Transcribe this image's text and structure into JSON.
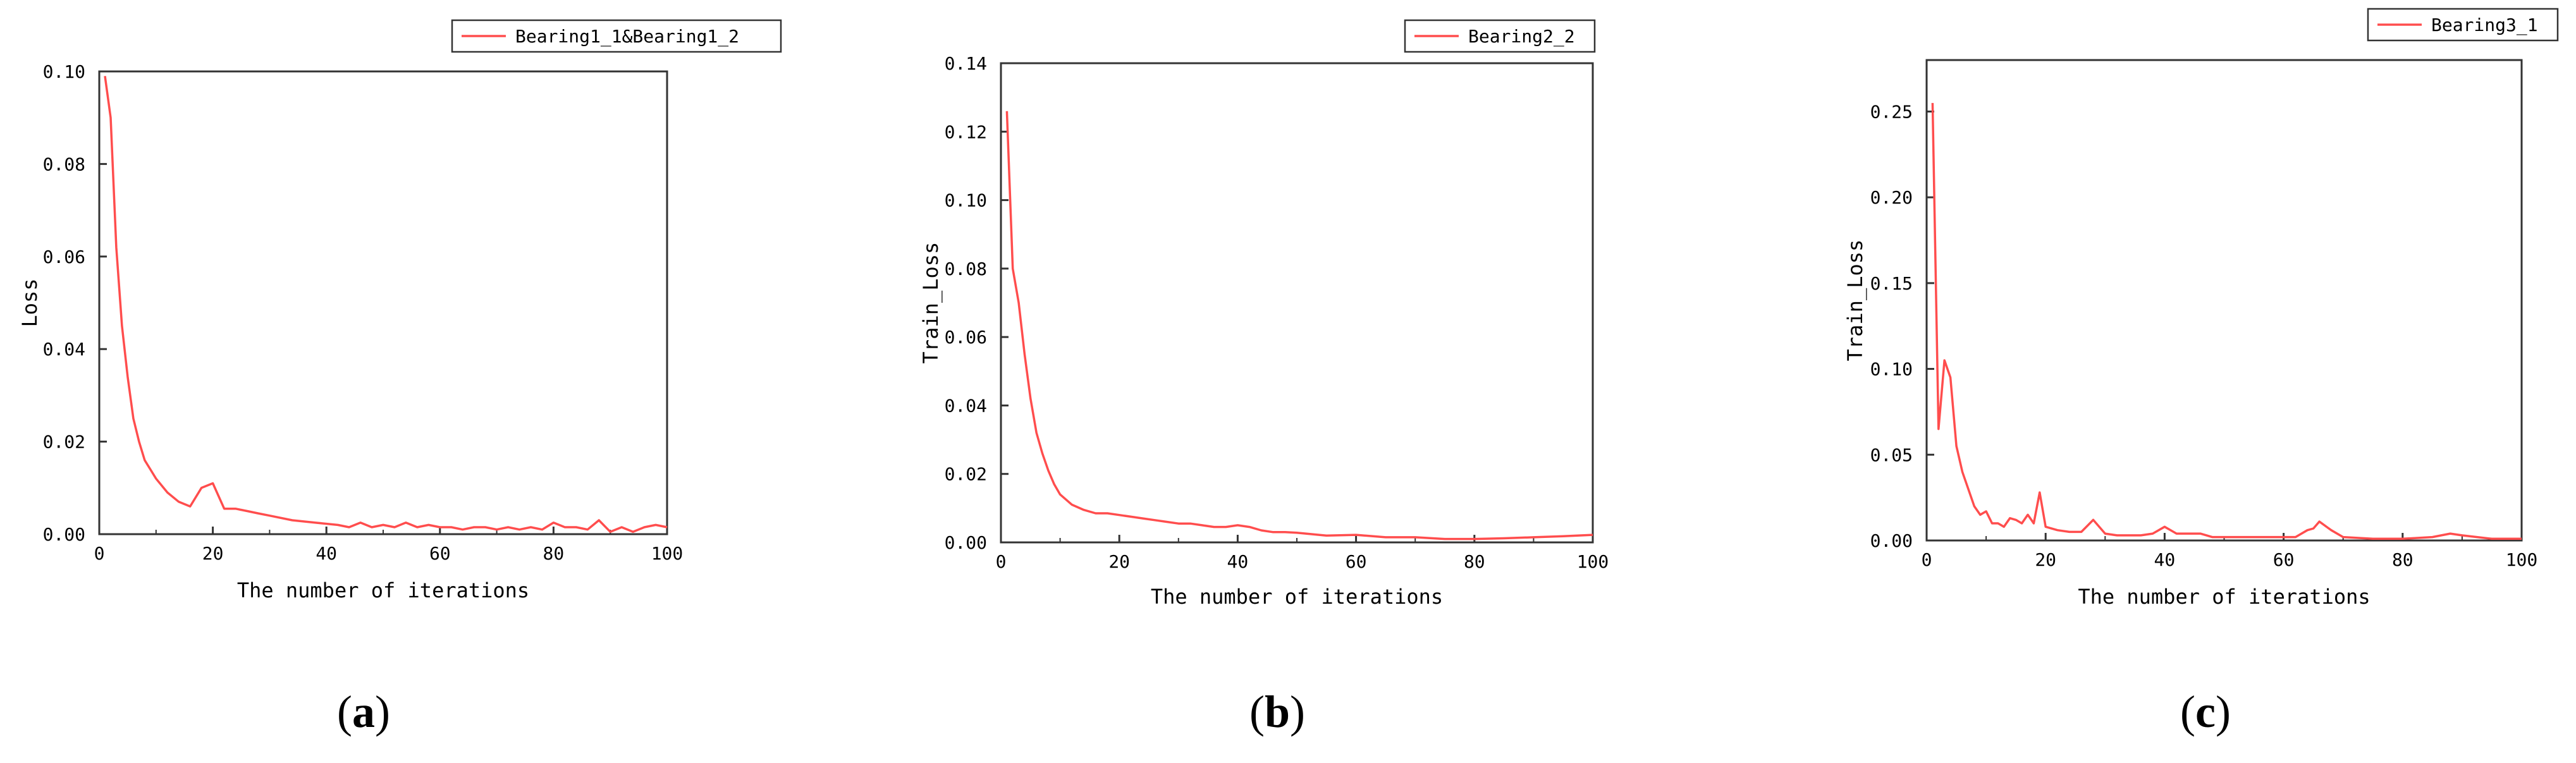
{
  "chart_data": [
    {
      "type": "line",
      "panel": "(a)",
      "panel_letter": "a",
      "xlabel": "The number of iterations",
      "ylabel": "Loss",
      "xlim": [
        0,
        100
      ],
      "ylim": [
        0,
        0.1
      ],
      "xticks": [
        "0",
        "20",
        "40",
        "60",
        "80",
        "100"
      ],
      "yticks": [
        "0.00",
        "0.02",
        "0.04",
        "0.06",
        "0.08",
        "0.10"
      ],
      "legend_position": "top-right",
      "grid": false,
      "series": [
        {
          "name": "Bearing1_1&Bearing1_2",
          "color": "#ff4d4d",
          "x": [
            1,
            2,
            3,
            4,
            5,
            6,
            7,
            8,
            9,
            10,
            12,
            14,
            16,
            18,
            20,
            22,
            24,
            26,
            28,
            30,
            34,
            38,
            42,
            44,
            46,
            48,
            50,
            52,
            54,
            56,
            58,
            60,
            62,
            64,
            66,
            68,
            70,
            72,
            74,
            76,
            78,
            80,
            82,
            84,
            86,
            88,
            90,
            92,
            94,
            96,
            98,
            100
          ],
          "y": [
            0.099,
            0.09,
            0.062,
            0.045,
            0.034,
            0.025,
            0.02,
            0.016,
            0.014,
            0.012,
            0.009,
            0.007,
            0.006,
            0.01,
            0.011,
            0.0055,
            0.0055,
            0.005,
            0.0045,
            0.004,
            0.003,
            0.0025,
            0.002,
            0.0015,
            0.0025,
            0.0015,
            0.002,
            0.0015,
            0.0025,
            0.0015,
            0.002,
            0.0015,
            0.0015,
            0.001,
            0.0015,
            0.0015,
            0.001,
            0.0015,
            0.001,
            0.0015,
            0.001,
            0.0025,
            0.0015,
            0.0015,
            0.001,
            0.003,
            0.0005,
            0.0015,
            0.0005,
            0.0015,
            0.002,
            0.0015
          ]
        }
      ]
    },
    {
      "type": "line",
      "panel": "(b)",
      "panel_letter": "b",
      "xlabel": "The number of iterations",
      "ylabel": "Train_Loss",
      "xlim": [
        0,
        100
      ],
      "ylim": [
        0,
        0.14
      ],
      "xticks": [
        "0",
        "20",
        "40",
        "60",
        "80",
        "100"
      ],
      "yticks": [
        "0.00",
        "0.02",
        "0.04",
        "0.06",
        "0.08",
        "0.10",
        "0.12",
        "0.14"
      ],
      "legend_position": "top-right",
      "grid": false,
      "series": [
        {
          "name": "Bearing2_2",
          "color": "#ff4d4d",
          "x": [
            1,
            2,
            3,
            4,
            5,
            6,
            7,
            8,
            9,
            10,
            12,
            14,
            16,
            18,
            20,
            22,
            24,
            26,
            28,
            30,
            32,
            34,
            36,
            38,
            40,
            42,
            44,
            46,
            48,
            50,
            55,
            60,
            65,
            70,
            75,
            80,
            85,
            90,
            95,
            100
          ],
          "y": [
            0.126,
            0.08,
            0.07,
            0.055,
            0.042,
            0.032,
            0.026,
            0.021,
            0.017,
            0.014,
            0.011,
            0.0095,
            0.0085,
            0.0085,
            0.008,
            0.0075,
            0.007,
            0.0065,
            0.006,
            0.0055,
            0.0055,
            0.005,
            0.0045,
            0.0045,
            0.005,
            0.0045,
            0.0035,
            0.003,
            0.003,
            0.0028,
            0.002,
            0.0022,
            0.0015,
            0.0015,
            0.001,
            0.001,
            0.0012,
            0.0015,
            0.0018,
            0.0022
          ]
        }
      ]
    },
    {
      "type": "line",
      "panel": "(c)",
      "panel_letter": "c",
      "xlabel": "The number of iterations",
      "ylabel": "Train_Loss",
      "xlim": [
        0,
        100
      ],
      "ylim": [
        0,
        0.28
      ],
      "xticks": [
        "0",
        "20",
        "40",
        "60",
        "80",
        "100"
      ],
      "yticks": [
        "0.00",
        "0.05",
        "0.10",
        "0.15",
        "0.20",
        "0.25"
      ],
      "legend_position": "top-right",
      "grid": false,
      "series": [
        {
          "name": "Bearing3_1",
          "color": "#ff4d4d",
          "x": [
            1,
            2,
            3,
            4,
            5,
            6,
            7,
            8,
            9,
            10,
            11,
            12,
            13,
            14,
            15,
            16,
            17,
            18,
            19,
            20,
            22,
            24,
            26,
            28,
            30,
            32,
            34,
            36,
            38,
            40,
            42,
            44,
            46,
            48,
            50,
            55,
            60,
            62,
            64,
            65,
            66,
            68,
            70,
            75,
            80,
            85,
            88,
            90,
            95,
            100
          ],
          "y": [
            0.255,
            0.065,
            0.105,
            0.095,
            0.055,
            0.04,
            0.03,
            0.02,
            0.015,
            0.017,
            0.01,
            0.01,
            0.008,
            0.013,
            0.012,
            0.01,
            0.015,
            0.01,
            0.028,
            0.008,
            0.006,
            0.005,
            0.005,
            0.012,
            0.004,
            0.003,
            0.003,
            0.003,
            0.004,
            0.008,
            0.004,
            0.004,
            0.004,
            0.002,
            0.002,
            0.002,
            0.002,
            0.002,
            0.006,
            0.007,
            0.011,
            0.006,
            0.002,
            0.001,
            0.001,
            0.002,
            0.004,
            0.003,
            0.001,
            0.001
          ]
        }
      ]
    }
  ]
}
